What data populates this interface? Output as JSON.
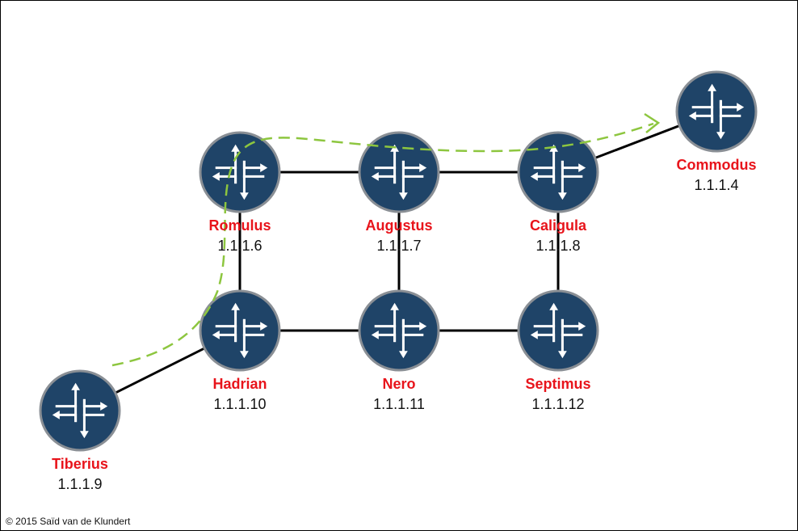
{
  "copyright": "© 2015 Saïd van de Klundert",
  "colors": {
    "router_fill": "#1f4468",
    "router_ring": "#8a8f95",
    "router_arrows": "#ffffff",
    "label_name": "#e8141b",
    "label_address": "#111111",
    "link": "#000000",
    "path": "#8dc63f"
  },
  "router_icon": "router-icon",
  "routers": [
    {
      "id": "romulus",
      "name": "Romulus",
      "address": "1.1.1.6"
    },
    {
      "id": "augustus",
      "name": "Augustus",
      "address": "1.1.1.7"
    },
    {
      "id": "caligula",
      "name": "Caligula",
      "address": "1.1.1.8"
    },
    {
      "id": "commodus",
      "name": "Commodus",
      "address": "1.1.1.4"
    },
    {
      "id": "hadrian",
      "name": "Hadrian",
      "address": "1.1.1.10"
    },
    {
      "id": "nero",
      "name": "Nero",
      "address": "1.1.1.11"
    },
    {
      "id": "septimus",
      "name": "Septimus",
      "address": "1.1.1.12"
    },
    {
      "id": "tiberius",
      "name": "Tiberius",
      "address": "1.1.1.9"
    }
  ],
  "links": [
    {
      "from": "romulus",
      "to": "augustus"
    },
    {
      "from": "augustus",
      "to": "caligula"
    },
    {
      "from": "caligula",
      "to": "commodus"
    },
    {
      "from": "romulus",
      "to": "hadrian"
    },
    {
      "from": "augustus",
      "to": "nero"
    },
    {
      "from": "caligula",
      "to": "septimus"
    },
    {
      "from": "hadrian",
      "to": "nero"
    },
    {
      "from": "nero",
      "to": "septimus"
    },
    {
      "from": "tiberius",
      "to": "hadrian"
    }
  ],
  "path": {
    "from": "tiberius",
    "to": "commodus",
    "style": "dashed",
    "via": [
      "hadrian",
      "romulus",
      "augustus",
      "caligula"
    ]
  }
}
